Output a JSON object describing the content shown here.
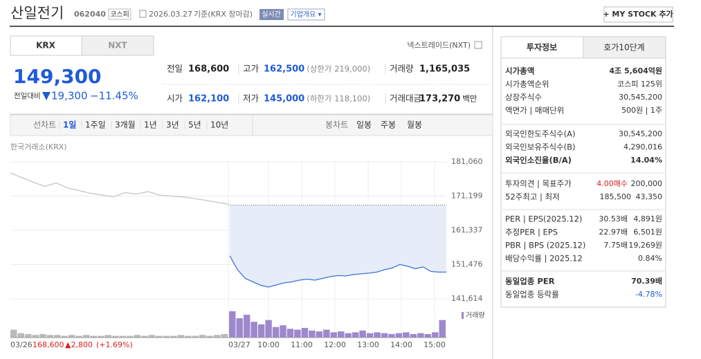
{
  "header": {
    "name": "산일전기",
    "code": "062040",
    "market": "코스피",
    "date": "2026.03.27",
    "basis": "기준(KRX 장마감)",
    "badge": "실시간",
    "overview": "기업개요 ▾",
    "mystock": "+ MY STOCK 추가"
  },
  "tabs": [
    "KRX",
    "NXT"
  ],
  "nxt_link": "넥스트레이드(NXT)",
  "price": {
    "current": "149,300",
    "change_label": "전일대비",
    "change": "19,300",
    "rate": "−11.45%"
  },
  "stats": [
    {
      "label": "전일",
      "value": "168,600"
    },
    {
      "label": "고가",
      "value": "162,500",
      "note": "(상한가 219,000)"
    },
    {
      "label": "거래량",
      "value": "1,165,035"
    },
    {
      "label": "시가",
      "value": "162,100"
    },
    {
      "label": "저가",
      "value": "145,000",
      "note": "(하한가 118,100)"
    },
    {
      "label": "거래대금",
      "value": "173,270",
      "note": "백만"
    }
  ],
  "chart_tabs": {
    "line_label": "선차트",
    "periods": [
      "1일",
      "1주일",
      "3개월",
      "1년",
      "3년",
      "5년",
      "10년"
    ],
    "candle_label": "봉차트",
    "candles": [
      "일봉",
      "주봉",
      "월봉"
    ]
  },
  "source": "한국거래소(KRX)",
  "chart": {
    "type": "line",
    "ylim": [
      141614,
      181060
    ],
    "yticks": [
      {
        "value": 181060,
        "label": "181,060"
      },
      {
        "value": 171199,
        "label": "171,199"
      },
      {
        "value": 161337,
        "label": "161,337"
      },
      {
        "value": 151476,
        "label": "151,476"
      },
      {
        "value": 141614,
        "label": "141,614"
      }
    ],
    "prev_close": 168600,
    "prev_day": {
      "color": "#c4c4c4",
      "values": [
        177900,
        176500,
        175200,
        174000,
        175000,
        173500,
        172800,
        172000,
        171500,
        171000,
        172200,
        171800,
        172500,
        171500,
        171200,
        171000,
        170500,
        170000,
        169400,
        168900
      ]
    },
    "today": {
      "color": "#3a73d6",
      "values": [
        154000,
        150000,
        147500,
        146500,
        145500,
        145000,
        145600,
        146200,
        146500,
        147000,
        147300,
        147000,
        147500,
        148000,
        148300,
        148200,
        148600,
        148800,
        149000,
        149300,
        150000,
        150500,
        151500,
        151000,
        150300,
        150800,
        149500,
        149300,
        149300
      ]
    },
    "volume_label": "거래량",
    "volume_prev": [
      9,
      5,
      4,
      3,
      4,
      3,
      3,
      2,
      3,
      2,
      3,
      2,
      2,
      3,
      2,
      2,
      2,
      3,
      2,
      3,
      2,
      2,
      2,
      3,
      2,
      2,
      3,
      2,
      3,
      4
    ],
    "volume_today": [
      30,
      22,
      26,
      18,
      15,
      20,
      12,
      14,
      10,
      9,
      11,
      8,
      7,
      9,
      6,
      7,
      5,
      6,
      8,
      5,
      6,
      5,
      4,
      5,
      6,
      4,
      5,
      4,
      6,
      20
    ],
    "x_labels": [
      "03/26",
      "03/27",
      "10:00",
      "11:00",
      "12:00",
      "13:00",
      "14:00",
      "15:00"
    ]
  },
  "bottom": {
    "prev_close": "168,600",
    "change": "▲2,800",
    "rate": "(+1.69%)"
  },
  "panel": {
    "tabs": [
      "투자정보",
      "호가10단계"
    ],
    "sections": [
      [
        {
          "label": "시가총액",
          "values": [
            "4조 5,604억원"
          ]
        },
        {
          "label": "시가총액순위",
          "values": [
            "코스피 125위"
          ]
        },
        {
          "label": "상장주식수",
          "values": [
            "30,545,200"
          ]
        },
        {
          "label": "액면가 | 매매단위",
          "values": [
            "500원 | 1주"
          ]
        }
      ],
      [
        {
          "label": "외국인한도주식수(A)",
          "values": [
            "30,545,200"
          ]
        },
        {
          "label": "외국인보유주식수(B)",
          "values": [
            "4,290,016"
          ]
        },
        {
          "label": "외국인소진율(B/A)",
          "values": [
            "14.04%"
          ]
        }
      ],
      [
        {
          "label": "투자의견 | 목표주가",
          "values": [
            "4.00매수",
            "200,000"
          ]
        },
        {
          "label": "52주최고 | 최저",
          "values": [
            "185,500",
            "43,350"
          ]
        }
      ],
      [
        {
          "label": "PER | EPS(2025.12)",
          "values": [
            "30.53배",
            "4,891원"
          ]
        },
        {
          "label": "추정PER | EPS",
          "values": [
            "22.97배",
            "6,501원"
          ]
        },
        {
          "label": "PBR | BPS (2025.12)",
          "values": [
            "7.75배",
            "19,269원"
          ]
        },
        {
          "label": "배당수익률 | 2025.12",
          "values": [
            "0.84%"
          ]
        }
      ],
      [
        {
          "label": "동일업종 PER",
          "values": [
            "70.39배"
          ]
        },
        {
          "label": "동일업종 등락률",
          "values": [
            "-4.78%"
          ]
        }
      ]
    ]
  }
}
